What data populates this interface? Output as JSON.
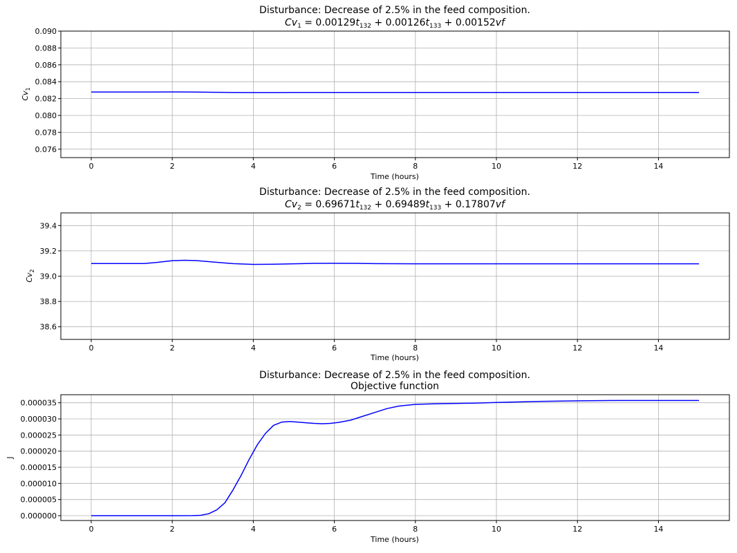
{
  "figure": {
    "background": "#ffffff",
    "line_color": "#0000ff"
  },
  "chart_data": [
    {
      "type": "line",
      "title": "Disturbance: Decrease of 2.5% in the feed composition.",
      "subtitle": {
        "base": "Cv",
        "base_sub": "1",
        "eq": " = 0.00129",
        "t1": "t",
        "t1_sub": "132",
        "plus1": " + 0.00126",
        "t2": "t",
        "t2_sub": "133",
        "plus2": " + 0.00152",
        "vf": "vf"
      },
      "xlabel": "Time (hours)",
      "ylabel": {
        "base": "Cv",
        "sub": "1"
      },
      "xlim": [
        -0.75,
        15.75
      ],
      "ylim": [
        0.075,
        0.09
      ],
      "xticks": [
        0,
        2,
        4,
        6,
        8,
        10,
        12,
        14
      ],
      "yticks": [
        0.076,
        0.078,
        0.08,
        0.082,
        0.084,
        0.086,
        0.088,
        0.09
      ],
      "ytick_labels": [
        "0.076",
        "0.078",
        "0.080",
        "0.082",
        "0.084",
        "0.086",
        "0.088",
        "0.090"
      ],
      "grid": true,
      "series": [
        {
          "x": [
            0,
            1,
            1.5,
            2,
            2.5,
            3,
            3.5,
            4,
            4.5,
            5,
            6,
            8,
            10,
            12,
            14,
            15
          ],
          "values": [
            0.08278,
            0.08278,
            0.08278,
            0.08279,
            0.08278,
            0.08275,
            0.08273,
            0.08272,
            0.08272,
            0.08273,
            0.08273,
            0.08273,
            0.08273,
            0.08273,
            0.08273,
            0.08273
          ]
        }
      ]
    },
    {
      "type": "line",
      "title": "Disturbance: Decrease of 2.5% in the feed composition.",
      "subtitle": {
        "base": "Cv",
        "base_sub": "2",
        "eq": " = 0.69671",
        "t1": "t",
        "t1_sub": "132",
        "plus1": " + 0.69489",
        "t2": "t",
        "t2_sub": "133",
        "plus2": " + 0.17807",
        "vf": "vf"
      },
      "xlabel": "Time (hours)",
      "ylabel": {
        "base": "Cv",
        "sub": "2"
      },
      "xlim": [
        -0.75,
        15.75
      ],
      "ylim": [
        38.5,
        39.5
      ],
      "xticks": [
        0,
        2,
        4,
        6,
        8,
        10,
        12,
        14
      ],
      "yticks": [
        38.6,
        38.8,
        39.0,
        39.2,
        39.4
      ],
      "ytick_labels": [
        "38.6",
        "38.8",
        "39.0",
        "39.2",
        "39.4"
      ],
      "grid": true,
      "series": [
        {
          "x": [
            0,
            1,
            1.3,
            1.6,
            2.0,
            2.3,
            2.6,
            3.0,
            3.5,
            4.0,
            4.5,
            5.0,
            5.5,
            6.0,
            6.5,
            7.0,
            8,
            10,
            12,
            14,
            15
          ],
          "values": [
            39.1,
            39.1,
            39.1,
            39.108,
            39.122,
            39.126,
            39.123,
            39.112,
            39.099,
            39.093,
            39.094,
            39.098,
            39.101,
            39.102,
            39.101,
            39.099,
            39.098,
            39.098,
            39.098,
            39.098,
            39.098
          ]
        }
      ]
    },
    {
      "type": "line",
      "title": "Disturbance: Decrease of 2.5% in the feed composition.",
      "subtitle_text": "Objective function",
      "xlabel": "Time (hours)",
      "ylabel_text": "J",
      "xlim": [
        -0.75,
        15.75
      ],
      "ylim": [
        -1.5e-06,
        3.75e-05
      ],
      "xticks": [
        0,
        2,
        4,
        6,
        8,
        10,
        12,
        14
      ],
      "yticks": [
        0,
        5e-06,
        1e-05,
        1.5e-05,
        2e-05,
        2.5e-05,
        3e-05,
        3.5e-05
      ],
      "ytick_labels": [
        "0.000000",
        "0.000005",
        "0.000010",
        "0.000015",
        "0.000020",
        "0.000025",
        "0.000030",
        "0.000035"
      ],
      "grid": true,
      "series": [
        {
          "x": [
            0,
            1,
            2,
            2.5,
            2.7,
            2.9,
            3.1,
            3.3,
            3.5,
            3.7,
            3.9,
            4.1,
            4.3,
            4.5,
            4.7,
            4.9,
            5.1,
            5.3,
            5.5,
            5.7,
            5.9,
            6.1,
            6.4,
            6.7,
            7.0,
            7.3,
            7.6,
            8.0,
            8.5,
            9.0,
            9.5,
            10.0,
            11.0,
            12.0,
            13.0,
            14.0,
            15.0
          ],
          "values": [
            0,
            0,
            0,
            2e-08,
            1e-07,
            6e-07,
            1.8e-06,
            4e-06,
            8e-06,
            1.25e-05,
            1.75e-05,
            2.2e-05,
            2.55e-05,
            2.8e-05,
            2.9e-05,
            2.92e-05,
            2.9e-05,
            2.88e-05,
            2.86e-05,
            2.85e-05,
            2.86e-05,
            2.89e-05,
            2.96e-05,
            3.08e-05,
            3.2e-05,
            3.32e-05,
            3.4e-05,
            3.45e-05,
            3.47e-05,
            3.48e-05,
            3.49e-05,
            3.51e-05,
            3.54e-05,
            3.56e-05,
            3.57e-05,
            3.57e-05,
            3.57e-05
          ]
        }
      ]
    }
  ]
}
